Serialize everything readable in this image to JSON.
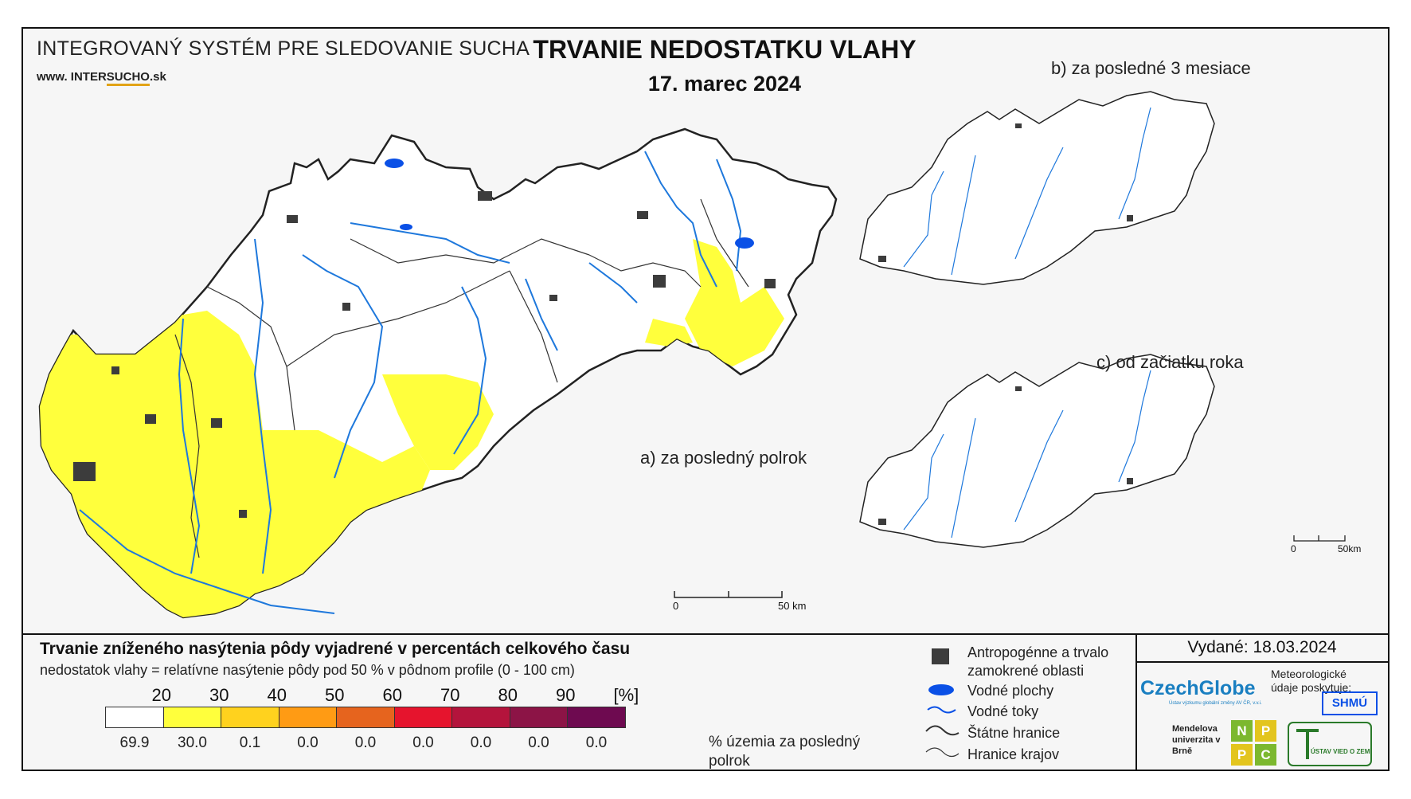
{
  "header": {
    "system_title": "INTEGROVANÝ SYSTÉM PRE SLEDOVANIE SUCHA",
    "website_prefix": "www. INTER",
    "website_underlined": "SUCHO",
    "website_suffix": ".sk",
    "title": "TRVANIE NEDOSTATKU VLAHY",
    "date": "17. marec 2024"
  },
  "maps": {
    "main_label": "a) za posledný polrok",
    "b_label": "b) za posledné 3 mesiace",
    "c_label": "c) od začiatku roka",
    "scale_main": {
      "zero": "0",
      "end": "50 km"
    },
    "scale_small": {
      "zero": "0",
      "end": "50km"
    }
  },
  "legend": {
    "title": "Trvanie zníženého nasýtenia pôdy vyjadrené v percentách celkového času",
    "subtitle": "nedostatok vlahy = relatívne nasýtenie pôdy pod 50 % v pôdnom profile (0 - 100 cm)",
    "thresholds": [
      "20",
      "30",
      "40",
      "50",
      "60",
      "70",
      "80",
      "90",
      "[%]"
    ],
    "colors": [
      "#ffffff",
      "#ffff3c",
      "#ffd21e",
      "#ff9b14",
      "#e6641e",
      "#e6142d",
      "#b4143c",
      "#8c1446",
      "#6e0a50"
    ],
    "percentages": [
      "69.9",
      "30.0",
      "0.1",
      "0.0",
      "0.0",
      "0.0",
      "0.0",
      "0.0",
      "0.0"
    ],
    "percent_note": "% územia za posledný polrok"
  },
  "map_legend": {
    "anthropogenic": "Antropogénne a trvalo zamokrené oblasti",
    "water_bodies": "Vodné plochy",
    "water_streams": "Vodné toky",
    "state_border": "Štátne hranice",
    "regional_border": "Hranice krajov"
  },
  "issued": "Vydané: 18.03.2024",
  "logos": {
    "czechglobe": "CzechGlobe",
    "czechglobe_sub": "Ústav výzkumu globální změny AV ČR, v.v.i.",
    "meteo_text": "Meteorologické údaje poskytuje:",
    "shmu": "SHMÚ",
    "mendel": "Mendelova univerzita v Brně",
    "nppc": [
      "N",
      "P",
      "P",
      "C"
    ],
    "uvz": "ÚSTAV VIED O ZEMI"
  },
  "colors": {
    "river": "#1e78dc",
    "urban": "#3c3c3c",
    "dry_20_30": "#ffff3c",
    "water": "#0a50e6"
  }
}
